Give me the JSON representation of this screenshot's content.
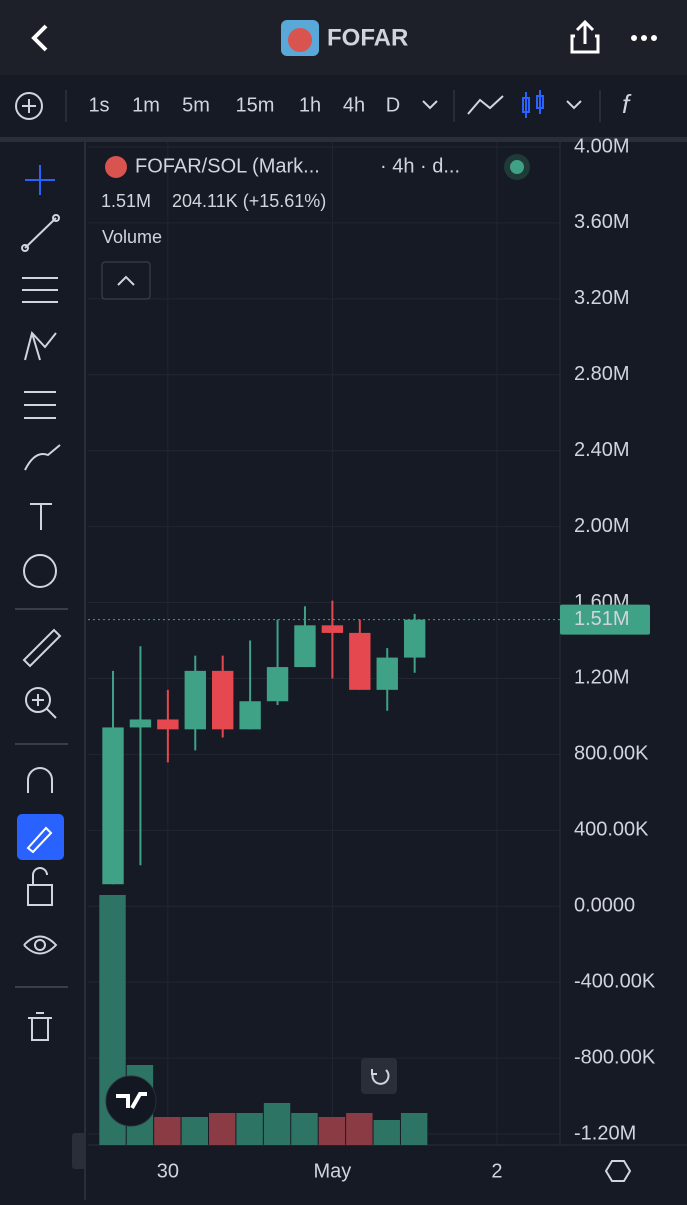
{
  "header": {
    "title": "FOFAR"
  },
  "intervals": [
    "1s",
    "1m",
    "5m",
    "15m",
    "1h",
    "4h",
    "D"
  ],
  "active_interval": "4h",
  "legend": {
    "symbol": "FOFAR/SOL (Mark...",
    "detail": "· 4h · d...",
    "price": "1.51M",
    "change": "204.11K (+15.61%)",
    "study": "Volume"
  },
  "chart_data": {
    "type": "candlestick",
    "x": [
      0,
      1,
      2,
      3,
      4,
      5,
      6,
      7,
      8,
      9,
      10,
      11
    ],
    "xlim": [
      -0.5,
      16.3
    ],
    "xticks": [
      {
        "value": 2,
        "label": "30"
      },
      {
        "value": 8,
        "label": "May"
      },
      {
        "value": 14,
        "label": "2"
      }
    ],
    "open": [
      116000,
      942000,
      984000,
      932000,
      1240000,
      932000,
      1080000,
      1260000,
      1480000,
      1440000,
      1140000,
      1310000
    ],
    "high": [
      1240000,
      1370000,
      1140000,
      1320000,
      1320000,
      1400000,
      1510000,
      1580000,
      1610000,
      1510000,
      1360000,
      1540000
    ],
    "low": [
      116000,
      216000,
      758000,
      821000,
      889000,
      932000,
      1060000,
      1260000,
      1200000,
      1140000,
      1030000,
      1230000
    ],
    "close": [
      942000,
      984000,
      932000,
      1240000,
      932000,
      1080000,
      1260000,
      1480000,
      1440000,
      1140000,
      1310000,
      1510000
    ],
    "up_color": "#3fa287",
    "down_color": "#e5484f",
    "ylim": [
      -1260000,
      4050000
    ],
    "yticks": [
      {
        "value": 4000000,
        "label": "4.00M"
      },
      {
        "value": 3600000,
        "label": "3.60M"
      },
      {
        "value": 3200000,
        "label": "3.20M"
      },
      {
        "value": 2800000,
        "label": "2.80M"
      },
      {
        "value": 2400000,
        "label": "2.40M"
      },
      {
        "value": 2000000,
        "label": "2.00M"
      },
      {
        "value": 1600000,
        "label": "1.60M"
      },
      {
        "value": 1200000,
        "label": "1.20M"
      },
      {
        "value": 800000,
        "label": "800.00K"
      },
      {
        "value": 400000,
        "label": "400.00K"
      },
      {
        "value": 0,
        "label": "0.0000"
      },
      {
        "value": -400000,
        "label": "-400.00K"
      },
      {
        "value": -800000,
        "label": "-800.00K"
      },
      {
        "value": -1200000,
        "label": "-1.20M"
      }
    ],
    "grid": true,
    "last_price": {
      "value": 1510000,
      "label": "1.51M"
    },
    "volume": {
      "values": [
        250,
        80,
        28,
        28,
        32,
        32,
        42,
        32,
        28,
        32,
        25,
        32
      ],
      "ylim": [
        0,
        1000
      ],
      "up_color": "#2e7464",
      "down_color": "#8b3b43"
    }
  }
}
